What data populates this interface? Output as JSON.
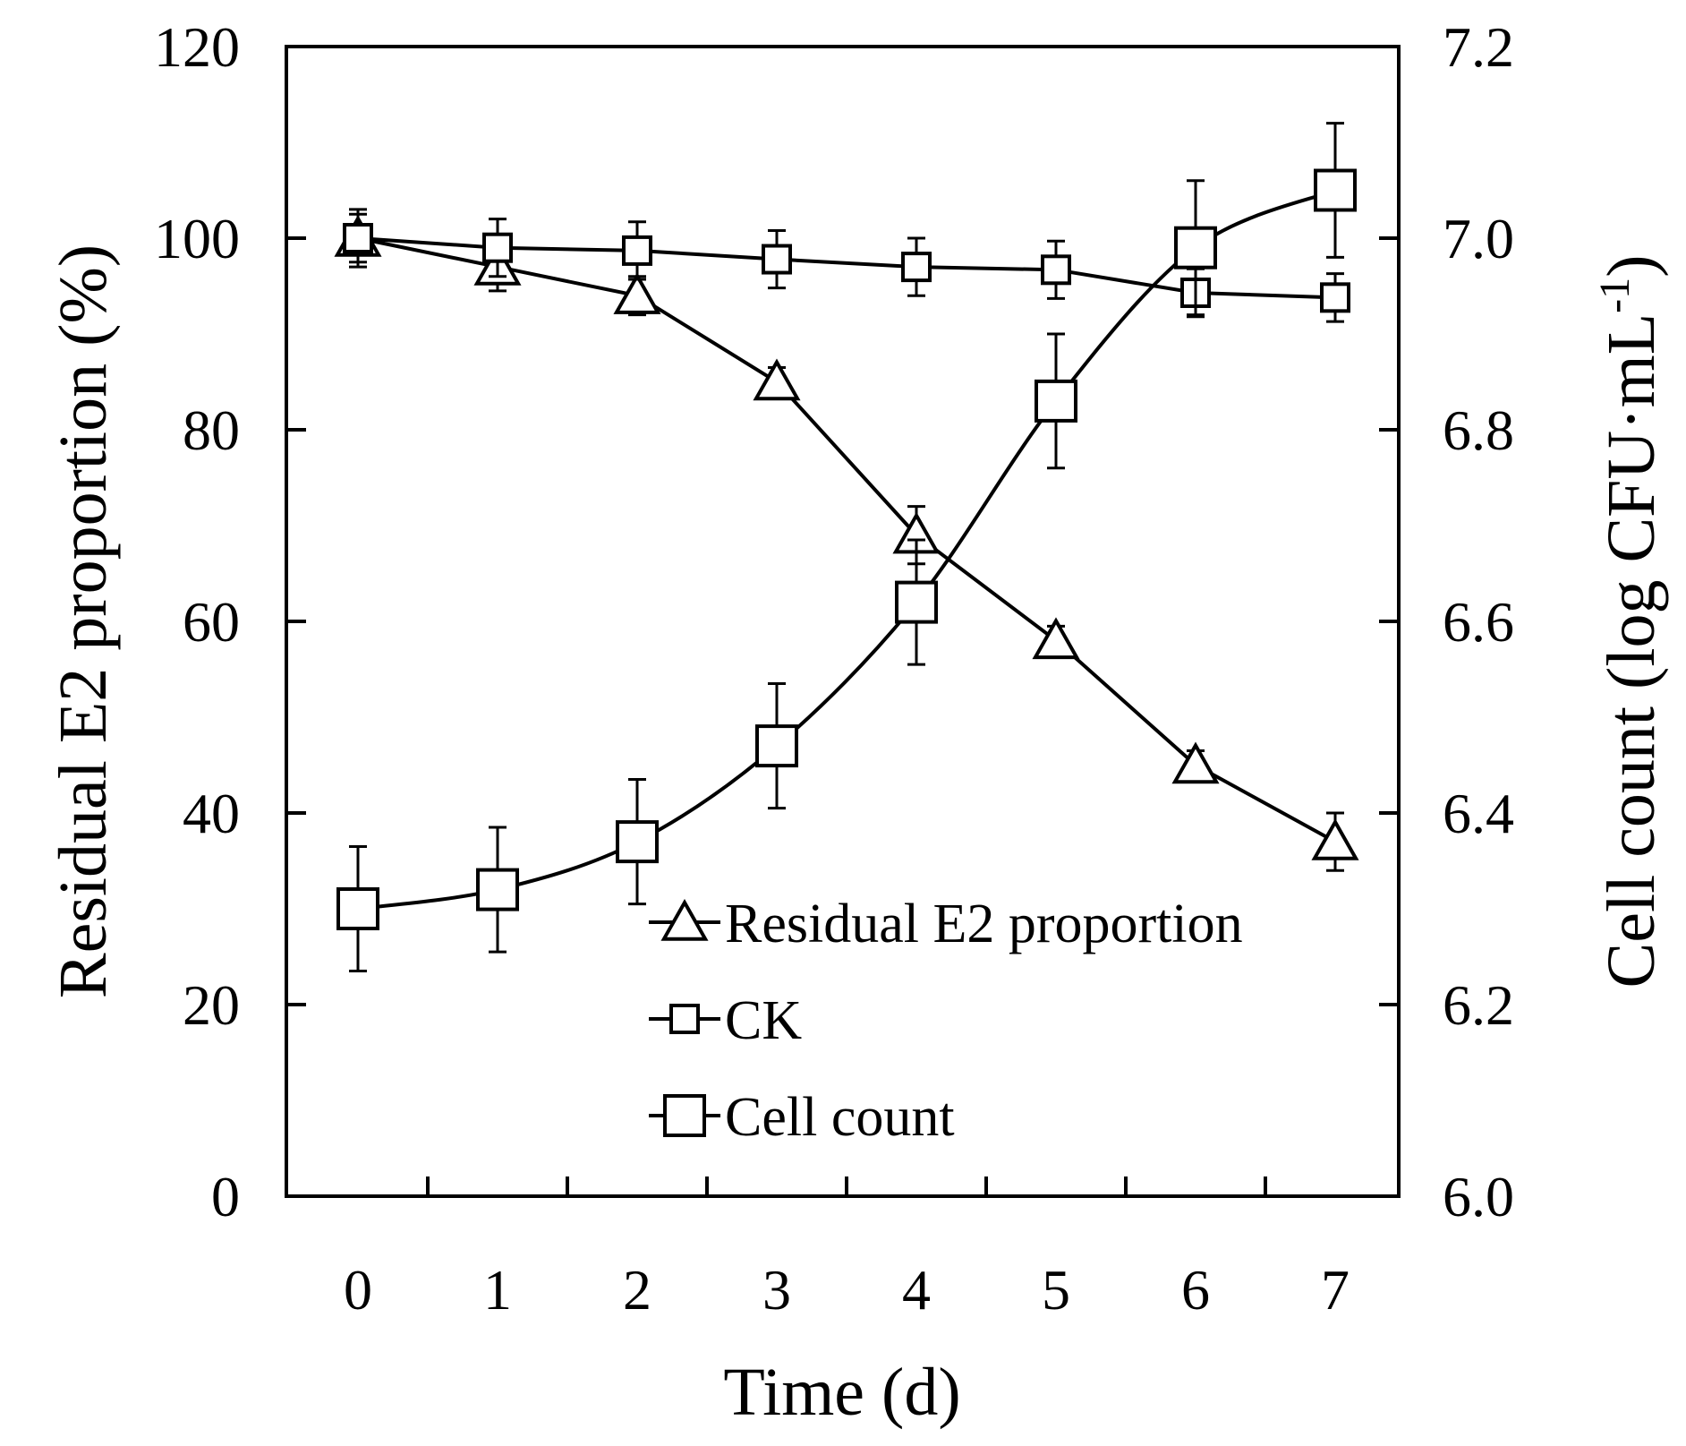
{
  "chart_data": {
    "type": "line",
    "title": "",
    "xlabel": "Time (d)",
    "ylabel_left": "Residual E2 proportion (%)",
    "ylabel_right_main": "Cell count (log CFU·mL",
    "ylabel_right_sup": "-1",
    "ylabel_right_close": ")",
    "x": [
      0,
      1,
      2,
      3,
      4,
      5,
      6,
      7
    ],
    "x_tick_labels": [
      "0",
      "1",
      "2",
      "3",
      "4",
      "5",
      "6",
      "7"
    ],
    "ylim_left": [
      0,
      120
    ],
    "ylim_right": [
      6.0,
      7.2
    ],
    "y_left_tick_labels": [
      "0",
      "20",
      "40",
      "60",
      "80",
      "100",
      "120"
    ],
    "y_right_tick_labels": [
      "6.0",
      "6.2",
      "6.4",
      "6.6",
      "6.8",
      "7.0",
      "7.2"
    ],
    "legend_position": "bottom-right",
    "grid": false,
    "series": [
      {
        "name": "Residual E2 proportion",
        "axis": "left",
        "marker": "triangle",
        "values": [
          100,
          97,
          94,
          85,
          69,
          58,
          45,
          37
        ],
        "errors": [
          2.5,
          2.5,
          2.0,
          1.5,
          3.0,
          1.5,
          1.5,
          3.0
        ]
      },
      {
        "name": "CK",
        "axis": "left",
        "marker": "square-small",
        "values": [
          100,
          99,
          98.7,
          97.8,
          97,
          96.7,
          94.3,
          93.8
        ],
        "errors": [
          3.0,
          3.0,
          3.0,
          3.0,
          3.0,
          3.0,
          2.5,
          2.5
        ]
      },
      {
        "name": "Cell count",
        "axis": "right",
        "marker": "square-large",
        "values": [
          6.3,
          6.32,
          6.37,
          6.47,
          6.62,
          6.83,
          6.99,
          7.05
        ],
        "errors": [
          0.065,
          0.065,
          0.065,
          0.065,
          0.065,
          0.07,
          0.07,
          0.07
        ]
      }
    ]
  }
}
